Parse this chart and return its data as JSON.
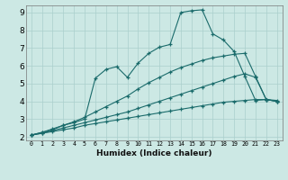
{
  "xlabel": "Humidex (Indice chaleur)",
  "background_color": "#cce8e4",
  "grid_color": "#aacfcc",
  "line_color": "#1a6b6b",
  "xlim": [
    -0.5,
    23.5
  ],
  "ylim": [
    1.8,
    9.4
  ],
  "xticks": [
    0,
    1,
    2,
    3,
    4,
    5,
    6,
    7,
    8,
    9,
    10,
    11,
    12,
    13,
    14,
    15,
    16,
    17,
    18,
    19,
    20,
    21,
    22,
    23
  ],
  "yticks": [
    2,
    3,
    4,
    5,
    6,
    7,
    8,
    9
  ],
  "series": [
    {
      "x": [
        0,
        1,
        2,
        3,
        4,
        5,
        6,
        7,
        8,
        9,
        10,
        11,
        12,
        13,
        14,
        15,
        16,
        17,
        18,
        19,
        20,
        21,
        22,
        23
      ],
      "y": [
        2.1,
        2.2,
        2.3,
        2.4,
        2.5,
        2.65,
        2.75,
        2.85,
        2.95,
        3.05,
        3.15,
        3.25,
        3.35,
        3.45,
        3.55,
        3.65,
        3.75,
        3.85,
        3.95,
        4.0,
        4.05,
        4.1,
        4.1,
        4.05
      ]
    },
    {
      "x": [
        0,
        1,
        2,
        3,
        4,
        5,
        6,
        7,
        8,
        9,
        10,
        11,
        12,
        13,
        14,
        15,
        16,
        17,
        18,
        19,
        20,
        21,
        22,
        23
      ],
      "y": [
        2.1,
        2.2,
        2.35,
        2.5,
        2.65,
        2.8,
        2.95,
        3.1,
        3.25,
        3.4,
        3.6,
        3.8,
        4.0,
        4.2,
        4.4,
        4.6,
        4.8,
        5.0,
        5.2,
        5.4,
        5.55,
        5.35,
        4.1,
        4.0
      ]
    },
    {
      "x": [
        0,
        1,
        2,
        3,
        4,
        5,
        6,
        7,
        8,
        9,
        10,
        11,
        12,
        13,
        14,
        15,
        16,
        17,
        18,
        19,
        20,
        21,
        22,
        23
      ],
      "y": [
        2.1,
        2.25,
        2.4,
        2.65,
        2.85,
        3.1,
        3.4,
        3.7,
        4.0,
        4.3,
        4.7,
        5.05,
        5.35,
        5.65,
        5.9,
        6.1,
        6.3,
        6.45,
        6.55,
        6.65,
        6.7,
        5.4,
        4.1,
        4.0
      ]
    },
    {
      "x": [
        0,
        1,
        2,
        3,
        4,
        5,
        6,
        7,
        8,
        9,
        10,
        11,
        12,
        13,
        14,
        15,
        16,
        17,
        18,
        19,
        20,
        21,
        22,
        23
      ],
      "y": [
        2.1,
        2.25,
        2.45,
        2.65,
        2.8,
        3.0,
        5.3,
        5.8,
        5.95,
        5.35,
        6.15,
        6.7,
        7.05,
        7.2,
        9.0,
        9.1,
        9.15,
        7.8,
        7.45,
        6.8,
        5.4,
        4.05,
        4.1,
        4.0
      ]
    }
  ]
}
